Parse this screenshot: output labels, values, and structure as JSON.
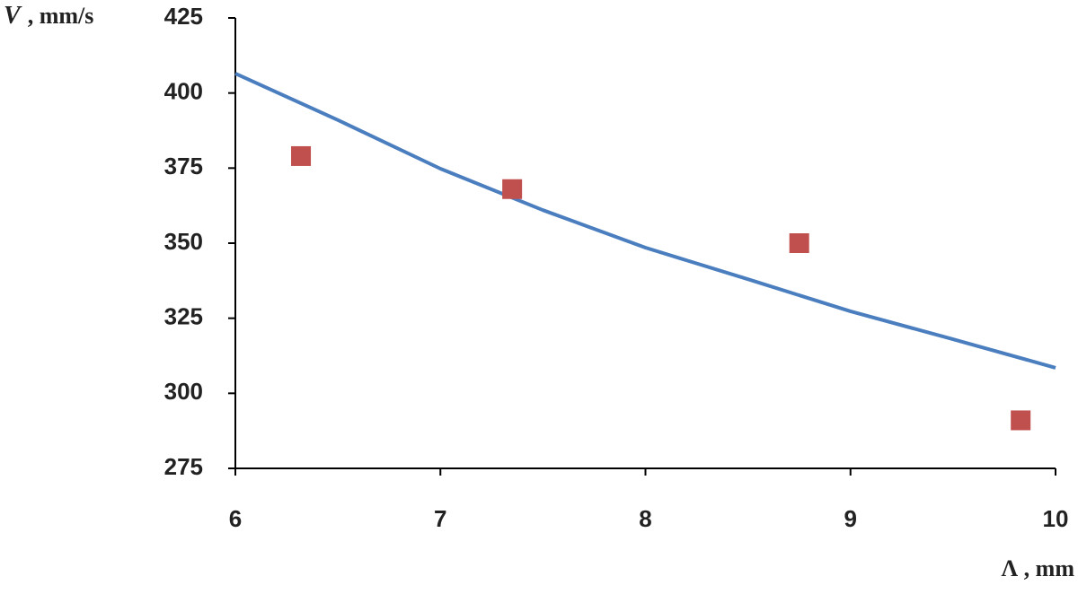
{
  "chart_data": {
    "type": "scatter",
    "x_label": "Λ , mm",
    "y_label_symbol": "V",
    "y_label_unit": ", mm/s",
    "xlim": [
      6,
      10
    ],
    "xticks": [
      6,
      7,
      8,
      9,
      10
    ],
    "ylim": [
      275,
      425
    ],
    "yticks": [
      275,
      300,
      325,
      350,
      375,
      400,
      425
    ],
    "grid": false,
    "series": [
      {
        "type": "line",
        "color": "#4a7ebf",
        "x": [
          6,
          6.5,
          7,
          7.5,
          8,
          8.5,
          9,
          9.5,
          10
        ],
        "values": [
          406.5,
          391,
          374.8,
          361,
          348.5,
          338,
          327.3,
          318,
          308.5
        ]
      },
      {
        "type": "scatter",
        "color": "#c0504d",
        "x": [
          6.32,
          7.35,
          8.75,
          9.83
        ],
        "values": [
          379,
          368,
          350,
          291
        ]
      }
    ]
  }
}
